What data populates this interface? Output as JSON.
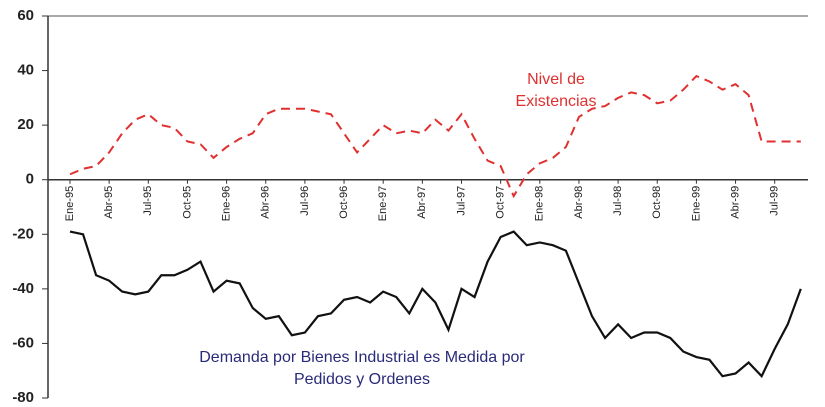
{
  "chart_data": {
    "type": "line",
    "categories": [
      "Ene-95",
      null,
      null,
      "Abr-95",
      null,
      null,
      "Jul-95",
      null,
      null,
      "Oct-95",
      null,
      null,
      "Ene-96",
      null,
      null,
      "Abr-96",
      null,
      null,
      "Jul-96",
      null,
      null,
      "Oct-96",
      null,
      null,
      "Ene-97",
      null,
      null,
      "Abr-97",
      null,
      null,
      "Jul-97",
      null,
      null,
      "Oct-97",
      null,
      null,
      "Ene-98",
      null,
      null,
      "Abr-98",
      null,
      null,
      "Jul-98",
      null,
      null,
      "Oct-98",
      null,
      null,
      "Ene-99",
      null,
      null,
      "Abr-99",
      null,
      null,
      "Jul-99",
      null,
      null
    ],
    "series": [
      {
        "name": "Nivel de Existencias",
        "color": "#e03030",
        "dash": true,
        "values": [
          2,
          4,
          5,
          10,
          17,
          22,
          24,
          20,
          19,
          14,
          13,
          8,
          12,
          15,
          17,
          24,
          26,
          26,
          26,
          25,
          24,
          17,
          10,
          15,
          20,
          17,
          18,
          17,
          22,
          18,
          24,
          15,
          7,
          5,
          -6,
          2,
          6,
          8,
          12,
          23,
          26,
          27,
          30,
          32,
          31,
          28,
          29,
          33,
          38,
          36,
          33,
          35,
          31,
          14,
          14,
          14,
          14
        ]
      },
      {
        "name": "Demanda por Bienes Industrial es Medida por Pedidos y Ordenes",
        "color": "#111111",
        "dash": false,
        "values": [
          -19,
          -20,
          -35,
          -37,
          -41,
          -42,
          -41,
          -35,
          -35,
          -33,
          -30,
          -41,
          -37,
          -38,
          -47,
          -51,
          -50,
          -57,
          -56,
          -50,
          -49,
          -44,
          -43,
          -45,
          -41,
          -43,
          -49,
          -40,
          -45,
          -55,
          -40,
          -43,
          -30,
          -21,
          -19,
          -24,
          -23,
          -24,
          -26,
          -38,
          -50,
          -58,
          -53,
          -58,
          -56,
          -56,
          -58,
          -63,
          -65,
          -66,
          -72,
          -71,
          -67,
          -72,
          -62,
          -53,
          -40
        ]
      }
    ],
    "annotations": [
      {
        "lines": [
          "Nivel de",
          "Existencias"
        ],
        "color": "#e03030"
      },
      {
        "lines": [
          "Demanda por Bienes Industrial es Medida por",
          "Pedidos y Ordenes"
        ],
        "color": "#2a2a7a"
      }
    ],
    "ylim": [
      -80,
      60
    ],
    "yticks": [
      -80,
      -60,
      -40,
      -20,
      0,
      20,
      40,
      60
    ]
  }
}
